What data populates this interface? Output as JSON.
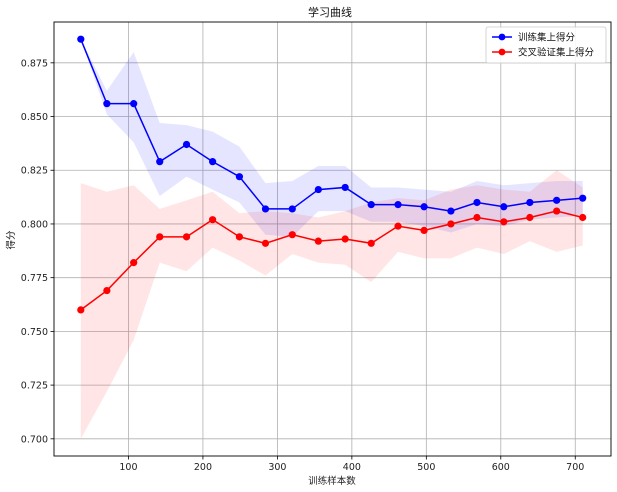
{
  "chart_data": {
    "type": "line",
    "title": "学习曲线",
    "xlabel": "训练样本数",
    "ylabel": "得分",
    "xlim": [
      0,
      748
    ],
    "ylim": [
      0.692,
      0.894
    ],
    "x_ticks": [
      100,
      200,
      300,
      400,
      500,
      600,
      700
    ],
    "y_ticks": [
      0.7,
      0.725,
      0.75,
      0.775,
      0.8,
      0.825,
      0.85,
      0.875
    ],
    "grid": true,
    "legend_position": "top-right",
    "x": [
      36,
      71,
      107,
      142,
      178,
      213,
      249,
      284,
      320,
      355,
      391,
      426,
      462,
      497,
      533,
      568,
      604,
      639,
      675,
      710
    ],
    "series": [
      {
        "name": "训练集上得分",
        "color": "#0000ff",
        "band_color": "#0000ff",
        "values": [
          0.886,
          0.856,
          0.856,
          0.829,
          0.837,
          0.829,
          0.822,
          0.807,
          0.807,
          0.816,
          0.817,
          0.809,
          0.809,
          0.808,
          0.806,
          0.81,
          0.808,
          0.81,
          0.811,
          0.812
        ],
        "lower": [
          0.886,
          0.851,
          0.838,
          0.813,
          0.822,
          0.816,
          0.81,
          0.795,
          0.794,
          0.806,
          0.806,
          0.801,
          0.801,
          0.799,
          0.796,
          0.8,
          0.799,
          0.802,
          0.803,
          0.804
        ],
        "upper": [
          0.886,
          0.862,
          0.88,
          0.847,
          0.846,
          0.843,
          0.836,
          0.819,
          0.82,
          0.827,
          0.827,
          0.817,
          0.817,
          0.816,
          0.815,
          0.82,
          0.818,
          0.819,
          0.82,
          0.82
        ]
      },
      {
        "name": "交叉验证集上得分",
        "color": "#ff0000",
        "band_color": "#ff0000",
        "values": [
          0.76,
          0.769,
          0.782,
          0.794,
          0.794,
          0.802,
          0.794,
          0.791,
          0.795,
          0.792,
          0.793,
          0.791,
          0.799,
          0.797,
          0.8,
          0.803,
          0.801,
          0.803,
          0.806,
          0.803
        ],
        "lower": [
          0.7,
          0.722,
          0.746,
          0.782,
          0.778,
          0.789,
          0.783,
          0.776,
          0.786,
          0.782,
          0.781,
          0.773,
          0.787,
          0.784,
          0.784,
          0.789,
          0.786,
          0.792,
          0.787,
          0.79
        ],
        "upper": [
          0.819,
          0.815,
          0.818,
          0.807,
          0.811,
          0.815,
          0.805,
          0.806,
          0.805,
          0.803,
          0.806,
          0.81,
          0.812,
          0.811,
          0.816,
          0.818,
          0.816,
          0.815,
          0.825,
          0.817
        ]
      }
    ]
  }
}
